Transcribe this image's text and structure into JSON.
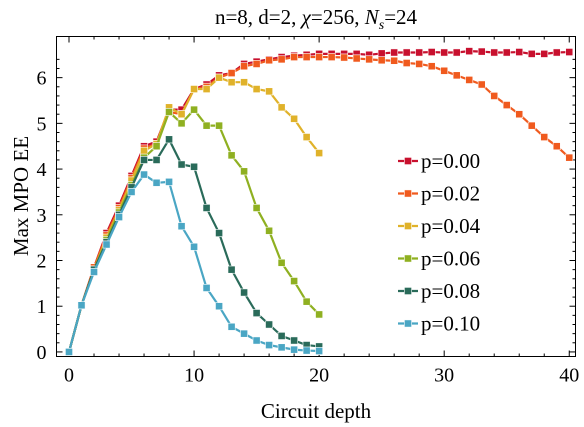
{
  "chart_data": {
    "type": "line",
    "title_parts": [
      "n=8, d=2, ",
      "χ",
      "=256, ",
      "N",
      "s",
      "=24"
    ],
    "xlabel": "Circuit depth",
    "ylabel": "Max MPO EE",
    "xlim": [
      -1,
      40.5
    ],
    "ylim": [
      -0.1,
      6.9
    ],
    "xticks": [
      0,
      10,
      20,
      30,
      40
    ],
    "yticks": [
      0,
      1,
      2,
      3,
      4,
      5,
      6
    ],
    "legend_position": "right-center",
    "series": [
      {
        "name": "p=0.00",
        "color": "#c8102e",
        "x": [
          0,
          1,
          2,
          3,
          4,
          5,
          6,
          7,
          8,
          9,
          10,
          11,
          12,
          13,
          14,
          15,
          16,
          17,
          18,
          19,
          20,
          21,
          22,
          23,
          24,
          25,
          26,
          27,
          28,
          29,
          30,
          31,
          32,
          33,
          34,
          35,
          36,
          37,
          38,
          39,
          40
        ],
        "y": [
          0,
          1.02,
          1.85,
          2.6,
          3.2,
          3.85,
          4.5,
          4.6,
          5.3,
          5.3,
          5.75,
          5.85,
          6.05,
          6.1,
          6.3,
          6.35,
          6.4,
          6.45,
          6.48,
          6.5,
          6.52,
          6.52,
          6.52,
          6.52,
          6.5,
          6.53,
          6.55,
          6.55,
          6.55,
          6.56,
          6.55,
          6.55,
          6.58,
          6.57,
          6.55,
          6.55,
          6.56,
          6.52,
          6.52,
          6.55,
          6.56
        ]
      },
      {
        "name": "p=0.02",
        "color": "#f05a1e",
        "x": [
          0,
          1,
          2,
          3,
          4,
          5,
          6,
          7,
          8,
          9,
          10,
          11,
          12,
          13,
          14,
          15,
          16,
          17,
          18,
          19,
          20,
          21,
          22,
          23,
          24,
          25,
          26,
          27,
          28,
          29,
          30,
          31,
          32,
          33,
          34,
          35,
          36,
          37,
          38,
          39,
          40
        ],
        "y": [
          0,
          1.02,
          1.85,
          2.55,
          3.15,
          3.8,
          4.45,
          4.55,
          5.25,
          5.2,
          5.75,
          5.8,
          6.0,
          6.1,
          6.25,
          6.3,
          6.38,
          6.4,
          6.45,
          6.45,
          6.45,
          6.45,
          6.44,
          6.42,
          6.4,
          6.38,
          6.37,
          6.32,
          6.3,
          6.25,
          6.15,
          6.05,
          5.95,
          5.85,
          5.6,
          5.4,
          5.2,
          4.95,
          4.7,
          4.5,
          4.25
        ]
      },
      {
        "name": "p=0.04",
        "color": "#e0b22a",
        "x": [
          0,
          1,
          2,
          3,
          4,
          5,
          6,
          7,
          8,
          9,
          10,
          11,
          12,
          13,
          14,
          15,
          16,
          17,
          18,
          19,
          20
        ],
        "y": [
          0,
          1.02,
          1.8,
          2.5,
          3.1,
          3.75,
          4.4,
          4.55,
          5.35,
          5.2,
          5.75,
          5.75,
          6.0,
          5.9,
          5.9,
          5.75,
          5.7,
          5.35,
          5.1,
          4.7,
          4.35
        ]
      },
      {
        "name": "p=0.06",
        "color": "#8fb021",
        "x": [
          0,
          1,
          2,
          3,
          4,
          5,
          6,
          7,
          8,
          9,
          10,
          11,
          12,
          13,
          14,
          15,
          16,
          17,
          18,
          19,
          20
        ],
        "y": [
          0,
          1.02,
          1.8,
          2.45,
          3.05,
          3.65,
          4.25,
          4.5,
          5.25,
          5.0,
          5.3,
          4.95,
          4.95,
          4.3,
          3.95,
          3.15,
          2.65,
          1.95,
          1.55,
          1.1,
          0.82
        ]
      },
      {
        "name": "p=0.08",
        "color": "#2a6b5a",
        "x": [
          0,
          1,
          2,
          3,
          4,
          5,
          6,
          7,
          8,
          9,
          10,
          11,
          12,
          13,
          14,
          15,
          16,
          17,
          18,
          19,
          20
        ],
        "y": [
          0,
          1.02,
          1.8,
          2.4,
          3.0,
          3.6,
          4.2,
          4.2,
          4.65,
          4.1,
          4.05,
          3.15,
          2.6,
          1.8,
          1.3,
          0.85,
          0.6,
          0.35,
          0.25,
          0.15,
          0.12
        ]
      },
      {
        "name": "p=0.10",
        "color": "#4aa6c4",
        "x": [
          0,
          1,
          2,
          3,
          4,
          5,
          6,
          7,
          8,
          9,
          10,
          11,
          12,
          13,
          14,
          15,
          16,
          17,
          18,
          19,
          20
        ],
        "y": [
          0,
          1.02,
          1.75,
          2.35,
          2.95,
          3.5,
          3.88,
          3.7,
          3.72,
          2.75,
          2.3,
          1.4,
          1.0,
          0.55,
          0.4,
          0.25,
          0.15,
          0.1,
          0.05,
          0.03,
          0.02
        ]
      }
    ]
  }
}
